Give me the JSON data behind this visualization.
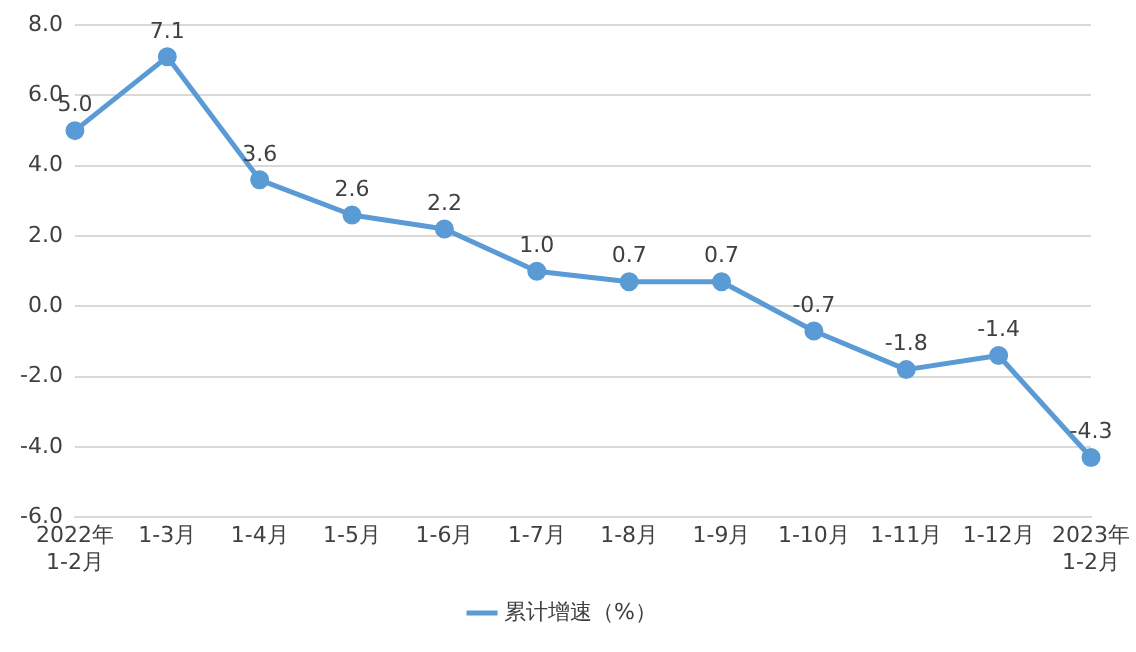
{
  "chart_data": {
    "type": "line",
    "categories": [
      "2022年\n1-2月",
      "1-3月",
      "1-4月",
      "1-5月",
      "1-6月",
      "1-7月",
      "1-8月",
      "1-9月",
      "1-10月",
      "1-11月",
      "1-12月",
      "2023年\n1-2月"
    ],
    "series": [
      {
        "name": "累计增速（%）",
        "color": "#5b9bd5",
        "values": [
          5.0,
          7.1,
          3.6,
          2.6,
          2.2,
          1.0,
          0.7,
          0.7,
          -0.7,
          -1.8,
          -1.4,
          -4.3
        ],
        "value_labels": [
          "5.0",
          "7.1",
          "3.6",
          "2.6",
          "2.2",
          "1.0",
          "0.7",
          "0.7",
          "-0.7",
          "-1.8",
          "-1.4",
          "-4.3"
        ]
      }
    ],
    "ylim": [
      -6,
      8
    ],
    "yticks": [
      {
        "value": -6,
        "label": "-6.0"
      },
      {
        "value": -4,
        "label": "-4.0"
      },
      {
        "value": -2,
        "label": "-2.0"
      },
      {
        "value": 0,
        "label": "0.0"
      },
      {
        "value": 2,
        "label": "2.0"
      },
      {
        "value": 4,
        "label": "4.0"
      },
      {
        "value": 6,
        "label": "6.0"
      },
      {
        "value": 8,
        "label": "8.0"
      }
    ],
    "grid": "y",
    "legend": "bottom",
    "marker": "circle",
    "line_style": "solid"
  }
}
